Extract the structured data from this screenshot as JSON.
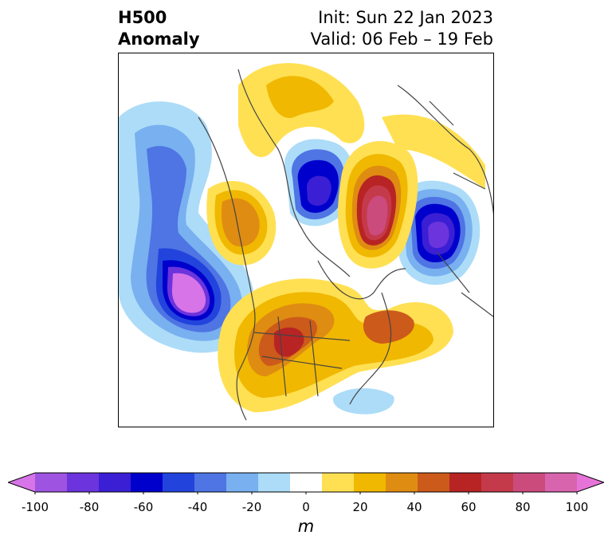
{
  "title": {
    "line1_left": "H500",
    "line2_left": "Anomaly",
    "line1_right": "Init: Sun 22 Jan 2023",
    "line2_right": "Valid: 06 Feb – 19 Feb"
  },
  "colorbar": {
    "unit": "m",
    "range": [
      -100,
      100
    ],
    "ticks": [
      "-100",
      "-80",
      "-60",
      "-40",
      "-20",
      "0",
      "20",
      "40",
      "60",
      "80",
      "100"
    ],
    "colors": [
      "#d674e8",
      "#9e54e0",
      "#6b34dc",
      "#3b1fd4",
      "#0000cc",
      "#2244dd",
      "#4f74e3",
      "#78b0f0",
      "#acdcf8",
      "#ffffff",
      "#ffe052",
      "#f0b800",
      "#df8c12",
      "#cc5a1a",
      "#b82424",
      "#c53a4a",
      "#cc4b7d",
      "#d864ae",
      "#e674d8"
    ],
    "extend": "both"
  },
  "map": {
    "variable": "500 hPa geopotential height anomaly",
    "projection": "north polar stereographic",
    "features": [
      {
        "name": "Western North America trough",
        "sign": "negative",
        "peak": "-100"
      },
      {
        "name": "Northern Siberia low",
        "sign": "negative",
        "peak": "-60"
      },
      {
        "name": "Scandinavia / Ural low",
        "sign": "negative",
        "peak": "-80"
      },
      {
        "name": "Arctic / Barents ridge",
        "sign": "positive",
        "peak": "90"
      },
      {
        "name": "Eastern North America ridge",
        "sign": "positive",
        "peak": "60"
      },
      {
        "name": "North Atlantic ridge",
        "sign": "positive",
        "peak": "50"
      },
      {
        "name": "Alaska / Bering ridge",
        "sign": "positive",
        "peak": "40"
      }
    ]
  }
}
